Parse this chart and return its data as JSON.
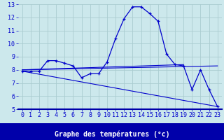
{
  "xlabel": "Graphe des températures (°c)",
  "background_color": "#cce8ec",
  "bottom_bar_color": "#0000aa",
  "grid_color": "#aaccd0",
  "line_color": "#0000cc",
  "xlim": [
    -0.5,
    23.5
  ],
  "ylim": [
    5,
    13
  ],
  "xticks": [
    0,
    1,
    2,
    3,
    4,
    5,
    6,
    7,
    8,
    9,
    10,
    11,
    12,
    13,
    14,
    15,
    16,
    17,
    18,
    19,
    20,
    21,
    22,
    23
  ],
  "yticks": [
    5,
    6,
    7,
    8,
    9,
    10,
    11,
    12,
    13
  ],
  "series_actual": {
    "x": [
      0,
      1,
      2,
      3,
      4,
      5,
      6,
      7,
      8,
      9,
      10,
      11,
      12,
      13,
      14,
      15,
      16,
      17,
      18,
      19,
      20,
      21,
      22,
      23
    ],
    "y": [
      7.9,
      7.9,
      7.9,
      8.7,
      8.7,
      8.5,
      8.3,
      7.4,
      7.7,
      7.7,
      8.6,
      10.4,
      11.9,
      12.8,
      12.8,
      12.3,
      11.7,
      9.2,
      8.4,
      8.3,
      6.5,
      8.0,
      6.5,
      5.2
    ]
  },
  "series_straight": [
    {
      "x": [
        0,
        23
      ],
      "y": [
        7.9,
        5.2
      ]
    },
    {
      "x": [
        0,
        19
      ],
      "y": [
        8.0,
        8.4
      ]
    },
    {
      "x": [
        0,
        23
      ],
      "y": [
        8.0,
        8.3
      ]
    }
  ],
  "xlabel_fontsize": 7,
  "tick_fontsize": 6,
  "xlabel_color": "#0000cc",
  "tick_color": "#0000cc"
}
